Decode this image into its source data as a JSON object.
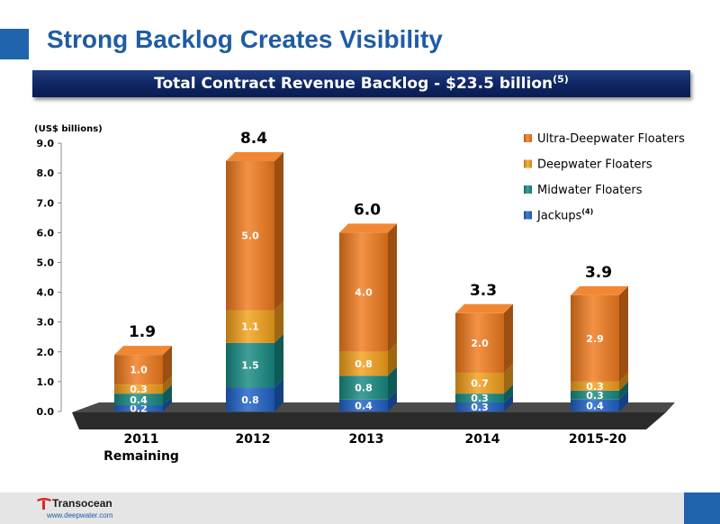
{
  "slide": {
    "title": "Strong Backlog Creates Visibility",
    "banner": "Total Contract Revenue Backlog - $23.5 billion",
    "banner_sup": "(5)"
  },
  "footer": {
    "logo_name": "Transocean",
    "url": "www.deepwater.com"
  },
  "colors": {
    "ultra_deepwater": "#f07a1c",
    "deepwater": "#f3a01a",
    "midwater": "#168a82",
    "jackups": "#1f62c8",
    "floor": "#2b2b2b",
    "title_blue": "#1f5ca3"
  },
  "chart_data": {
    "type": "bar",
    "stacked": true,
    "title": "",
    "unit_label": "(US$ billions)",
    "ylim": [
      0,
      9
    ],
    "yticks": [
      "0.0",
      "1.0",
      "2.0",
      "3.0",
      "4.0",
      "5.0",
      "6.0",
      "7.0",
      "8.0",
      "9.0"
    ],
    "grid": false,
    "legend_position": "top-right",
    "categories": [
      "2011\nRemaining",
      "2012",
      "2013",
      "2014",
      "2015-20"
    ],
    "series": [
      {
        "name": "Jackups",
        "name_sup": "(4)",
        "key": "jackups",
        "values": [
          0.2,
          0.8,
          0.4,
          0.3,
          0.4
        ],
        "labels": [
          "0.2",
          "0.8",
          "0.4",
          "0.3",
          "0.4"
        ]
      },
      {
        "name": "Midwater Floaters",
        "key": "midwater",
        "values": [
          0.4,
          1.5,
          0.8,
          0.3,
          0.3
        ],
        "labels": [
          "0.4",
          "1.5",
          "0.8",
          "0.3",
          "0.3"
        ]
      },
      {
        "name": "Deepwater Floaters",
        "key": "deepwater",
        "values": [
          0.3,
          1.1,
          0.8,
          0.7,
          0.3
        ],
        "labels": [
          "0.3",
          "1.1",
          "0.8",
          "0.7",
          "0.3"
        ]
      },
      {
        "name": "Ultra-Deepwater Floaters",
        "key": "ultra_deepwater",
        "values": [
          1.0,
          5.0,
          4.0,
          2.0,
          2.9
        ],
        "labels": [
          "1.0",
          "5.0",
          "4.0",
          "2.0",
          "2.9"
        ]
      }
    ],
    "totals": [
      1.9,
      8.4,
      6.0,
      3.3,
      3.9
    ],
    "total_labels": [
      "1.9",
      "8.4",
      "6.0",
      "3.3",
      "3.9"
    ]
  }
}
